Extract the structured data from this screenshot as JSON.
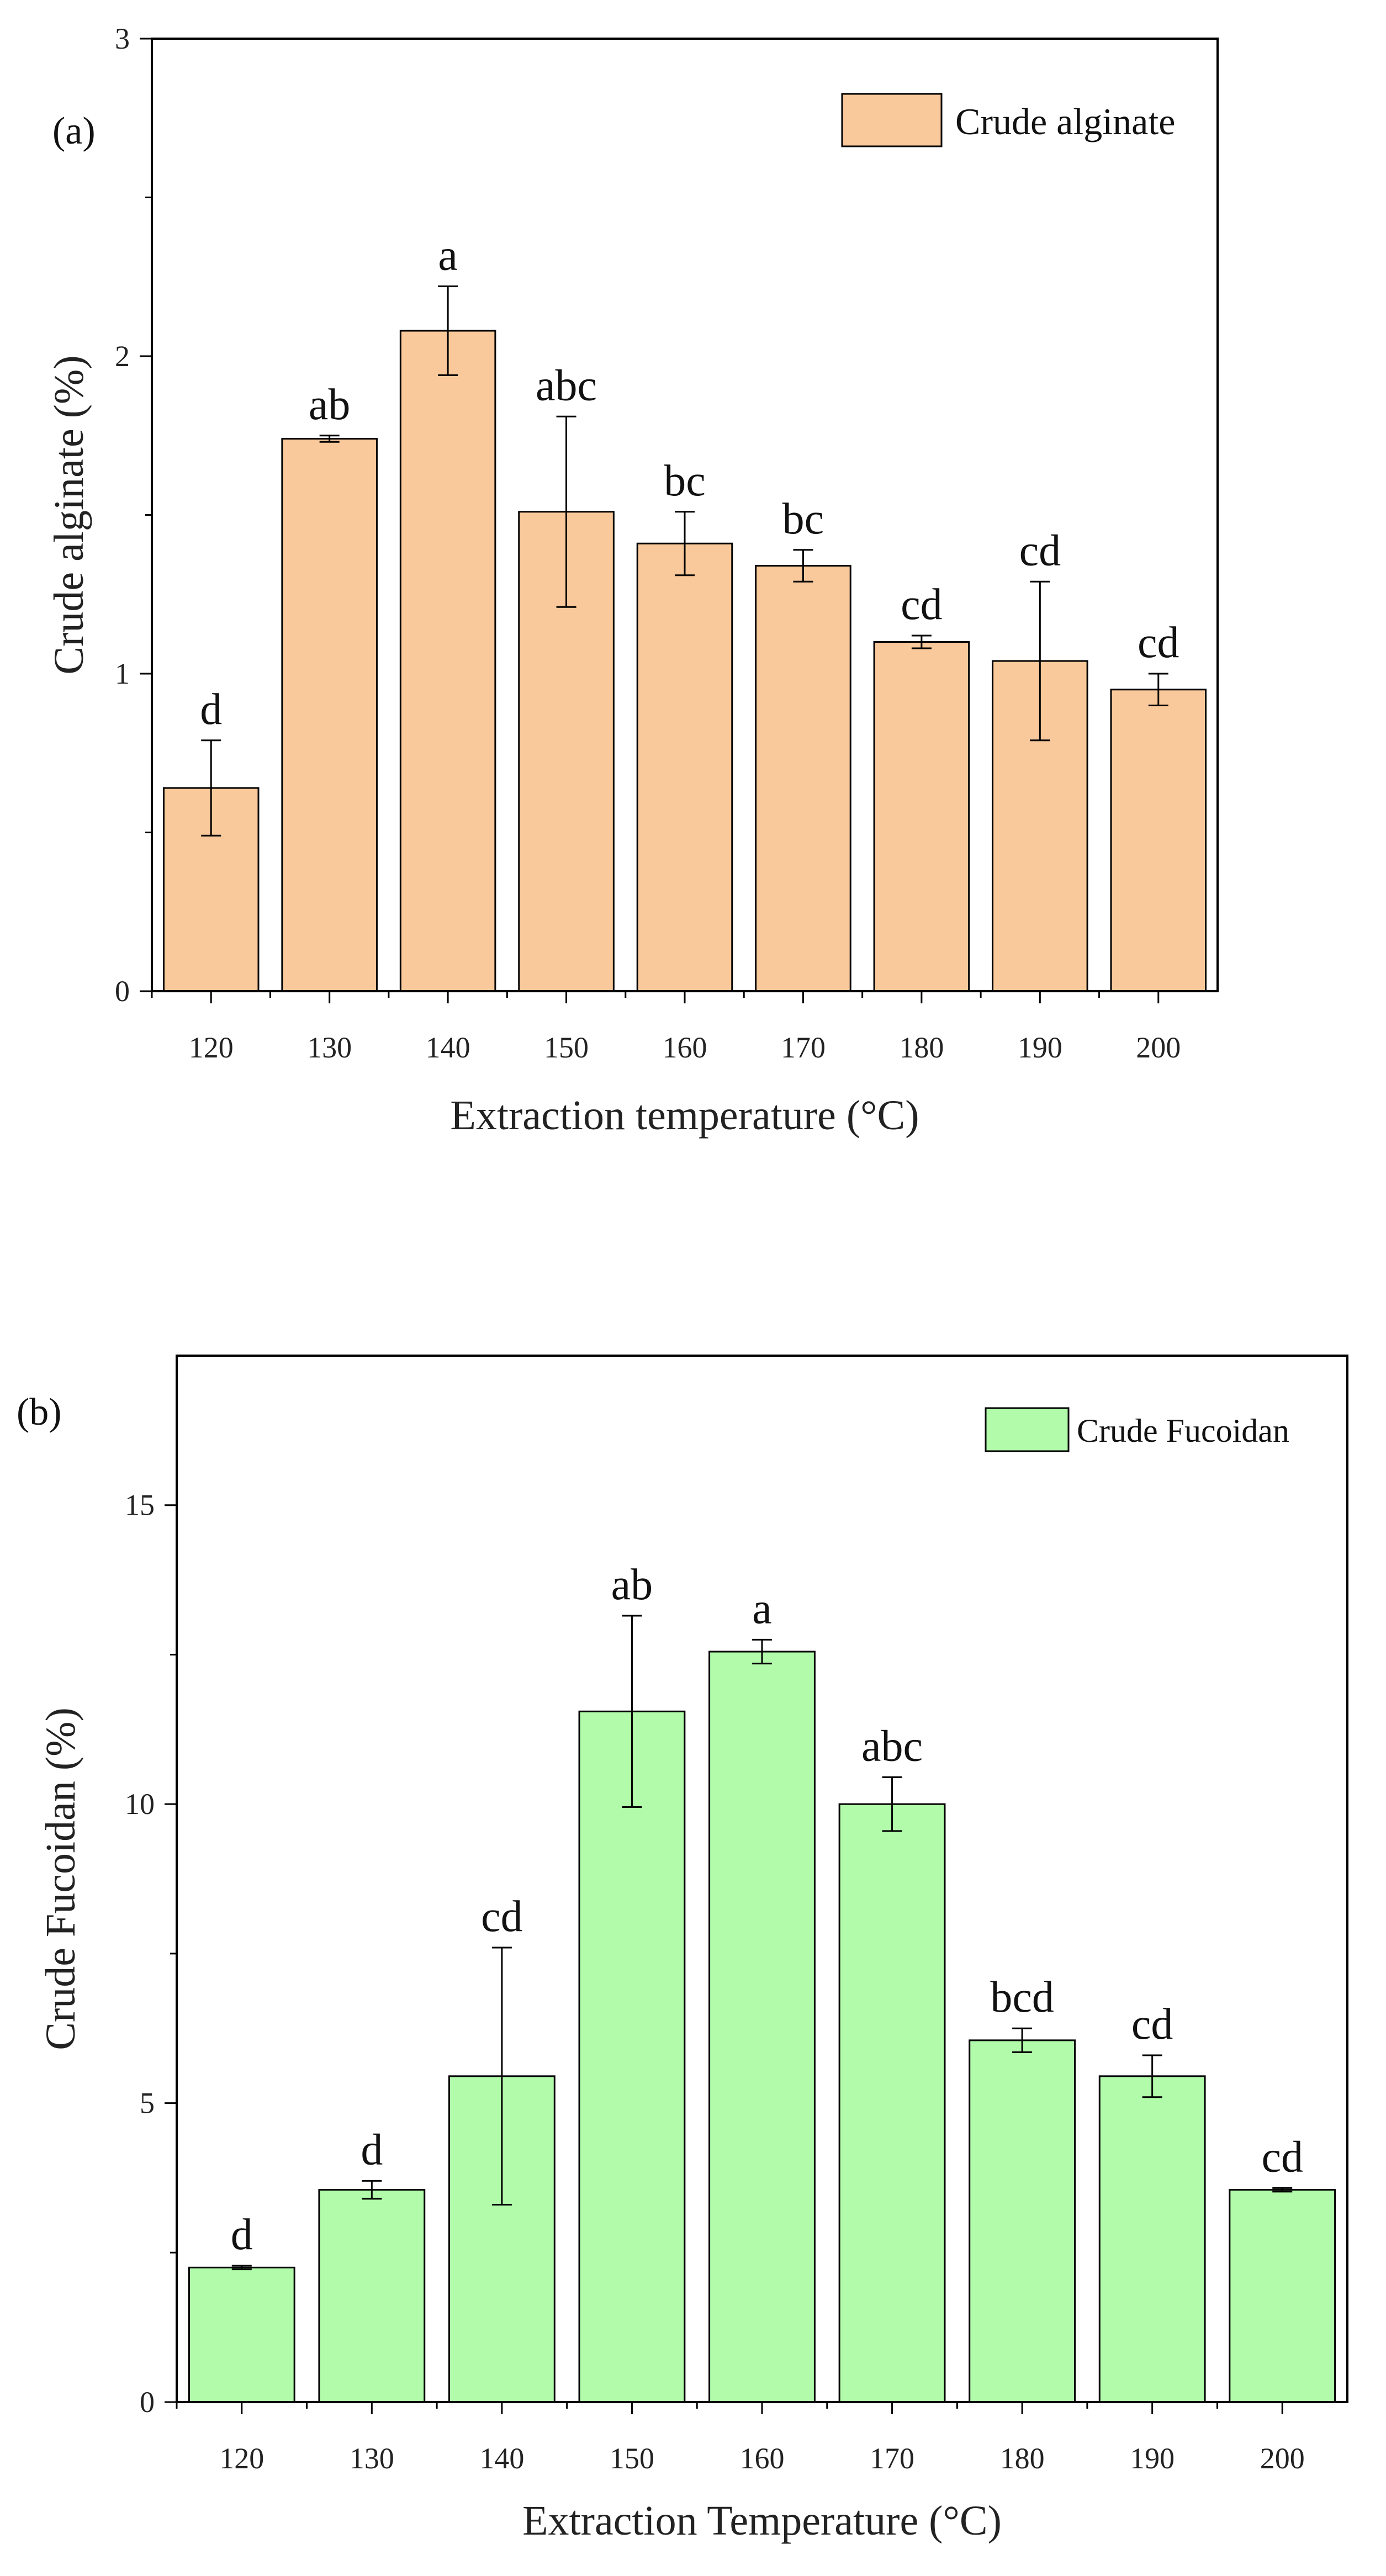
{
  "chart_data": [
    {
      "type": "bar",
      "panel_label": "(a)",
      "categories": [
        "120",
        "130",
        "140",
        "150",
        "160",
        "170",
        "180",
        "190",
        "200"
      ],
      "series": [
        {
          "name": "Crude alginate",
          "color": "#F9C99B",
          "values": [
            0.64,
            1.74,
            2.08,
            1.51,
            1.41,
            1.34,
            1.1,
            1.04,
            0.95
          ],
          "errors": [
            0.15,
            0.01,
            0.14,
            0.3,
            0.1,
            0.05,
            0.02,
            0.25,
            0.05
          ],
          "significance": [
            "d",
            "ab",
            "a",
            "abc",
            "bc",
            "bc",
            "cd",
            "cd",
            "cd"
          ]
        }
      ],
      "xlabel": "Extraction temperature (°C)",
      "ylabel": "Crude alginate (%)",
      "ylim": [
        0,
        3
      ],
      "yticks": [
        0,
        1,
        2,
        3
      ],
      "legend_position": "top-right"
    },
    {
      "type": "bar",
      "panel_label": "(b)",
      "categories": [
        "120",
        "130",
        "140",
        "150",
        "160",
        "170",
        "180",
        "190",
        "200"
      ],
      "series": [
        {
          "name": "Crude Fucoidan",
          "color": "#B1FBAA",
          "values": [
            2.25,
            3.55,
            5.45,
            11.55,
            12.55,
            10.0,
            6.05,
            5.45,
            3.55
          ],
          "errors": [
            0.03,
            0.15,
            2.15,
            1.6,
            0.2,
            0.45,
            0.2,
            0.35,
            0.03
          ],
          "significance": [
            "d",
            "d",
            "cd",
            "ab",
            "a",
            "abc",
            "bcd",
            "cd",
            "cd"
          ]
        }
      ],
      "xlabel": "Extraction Temperature (°C)",
      "ylabel": "Crude Fucoidan (%)",
      "ylim": [
        0,
        17.5
      ],
      "yticks": [
        0,
        5,
        10,
        15
      ],
      "legend_position": "top-right"
    }
  ]
}
